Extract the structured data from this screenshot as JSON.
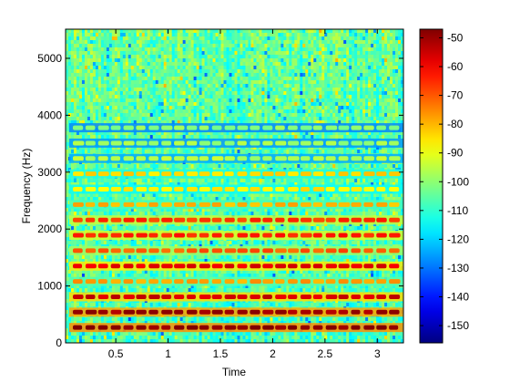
{
  "chart_data": {
    "type": "heatmap",
    "title": "",
    "xlabel": "Time",
    "ylabel": "Frequency (Hz)",
    "xlim": [
      0.02,
      3.25
    ],
    "ylim": [
      0,
      5512
    ],
    "x_ticks": [
      0.5,
      1,
      1.5,
      2,
      2.5,
      3
    ],
    "x_tick_labels": [
      "0.5",
      "1",
      "1.5",
      "2",
      "2.5",
      "3"
    ],
    "y_ticks": [
      0,
      1000,
      2000,
      3000,
      4000,
      5000
    ],
    "y_tick_labels": [
      "0",
      "1000",
      "2000",
      "3000",
      "4000",
      "5000"
    ],
    "colorbar": {
      "colormap": "jet",
      "range": [
        -156,
        -47
      ],
      "ticks": [
        -50,
        -60,
        -70,
        -80,
        -90,
        -100,
        -110,
        -120,
        -130,
        -140,
        -150
      ],
      "tick_labels": [
        "-50",
        "-60",
        "-70",
        "-80",
        "-90",
        "-100",
        "-110",
        "-120",
        "-130",
        "-140",
        "-150"
      ]
    },
    "background_level": -108,
    "harmonic_bands": [
      {
        "frequency": 270,
        "level": -48
      },
      {
        "frequency": 540,
        "level": -50
      },
      {
        "frequency": 810,
        "level": -56
      },
      {
        "frequency": 1080,
        "level": -78
      },
      {
        "frequency": 1350,
        "level": -58
      },
      {
        "frequency": 1620,
        "level": -70
      },
      {
        "frequency": 1890,
        "level": -64
      },
      {
        "frequency": 2160,
        "level": -66
      },
      {
        "frequency": 2430,
        "level": -80
      },
      {
        "frequency": 2700,
        "level": -86
      },
      {
        "frequency": 2970,
        "level": -84
      },
      {
        "frequency": 3240,
        "level": -96
      },
      {
        "frequency": 3510,
        "level": -98
      },
      {
        "frequency": 3780,
        "level": -100
      }
    ],
    "colors": {
      "low": "#00007f",
      "mid": "#7fff7f",
      "high": "#7f0000"
    }
  }
}
